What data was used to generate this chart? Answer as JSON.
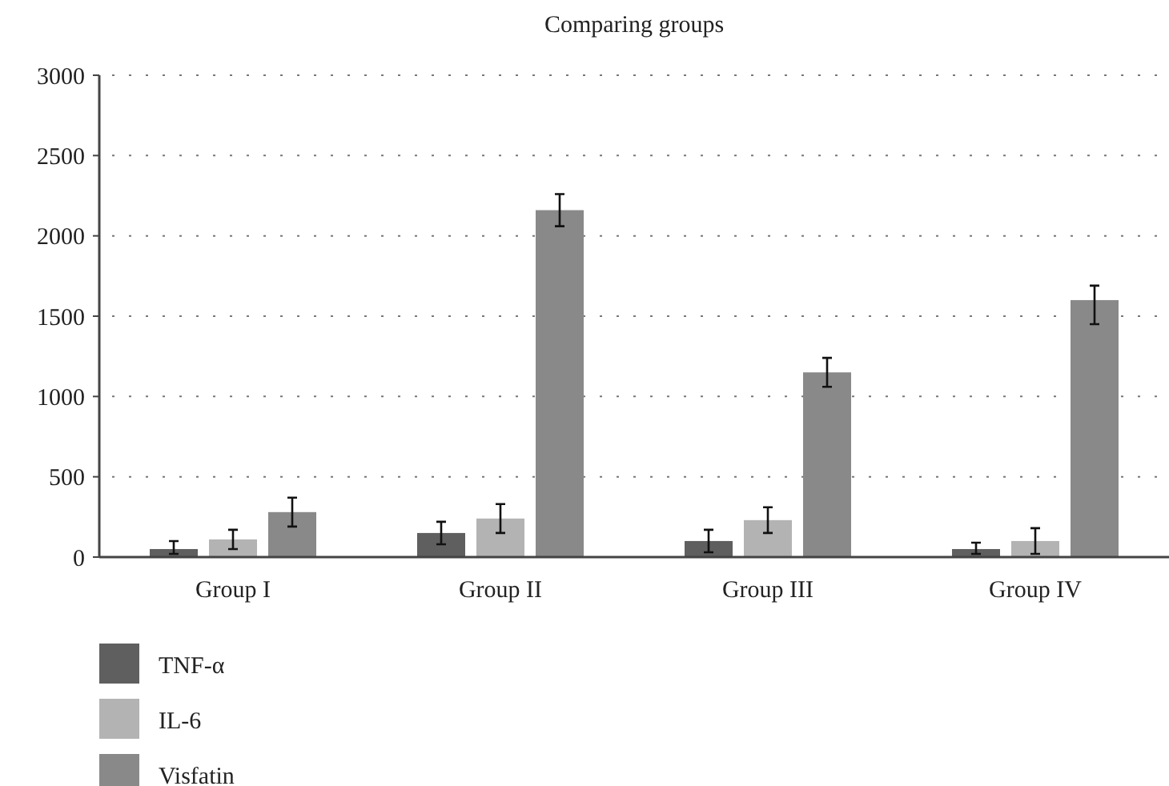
{
  "chart_data": {
    "type": "bar",
    "title": "Comparing groups",
    "categories": [
      "Group I",
      "Group II",
      "Group III",
      "Group IV"
    ],
    "series": [
      {
        "name": "TNF-α",
        "color": "#5f5f5f",
        "values": [
          50,
          150,
          100,
          50
        ],
        "errors": [
          [
            20,
            100
          ],
          70,
          70,
          [
            20,
            90
          ]
        ]
      },
      {
        "name": "IL-6",
        "color": "#b3b3b3",
        "values": [
          110,
          240,
          230,
          100
        ],
        "errors": [
          60,
          90,
          80,
          80
        ]
      },
      {
        "name": "Visfatin",
        "color": "#898989",
        "values": [
          280,
          2160,
          1150,
          1600
        ],
        "errors": [
          90,
          100,
          90,
          [
            1450,
            1690
          ]
        ]
      }
    ],
    "ylim": [
      0,
      3000
    ],
    "yticks": [
      0,
      500,
      1000,
      1500,
      2000,
      2500,
      3000
    ],
    "grid": "y",
    "legend": "bottom left"
  }
}
